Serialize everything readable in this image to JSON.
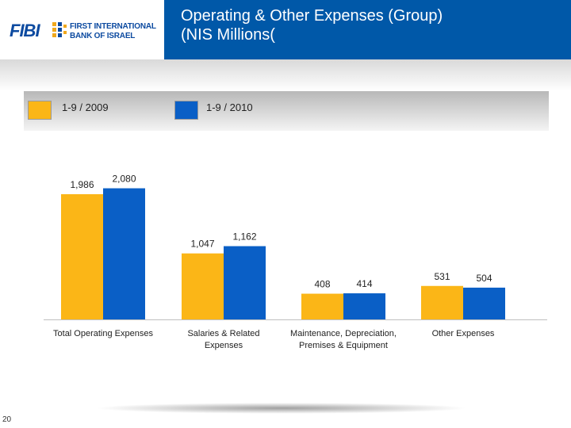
{
  "header": {
    "logo_text": "FIBI",
    "logo_line1": "FIRST INTERNATIONAL",
    "logo_line2": "BANK OF ISRAEL",
    "title_line1": "Operating & Other Expenses (Group)",
    "title_line2": "(NIS Millions("
  },
  "legend": {
    "items": [
      {
        "label": "1-9 / 2009",
        "color": "#fbb617"
      },
      {
        "label": "1-9 / 2010",
        "color": "#0a5fc6"
      }
    ]
  },
  "chart_data": {
    "type": "bar",
    "title": "Operating & Other Expenses (Group) (NIS Millions(",
    "categories": [
      [
        "Total Operating Expenses"
      ],
      [
        "Salaries & Related",
        "Expenses"
      ],
      [
        "Maintenance, Depreciation,",
        "Premises & Equipment"
      ],
      [
        "Other Expenses"
      ]
    ],
    "series": [
      {
        "name": "1-9 / 2009",
        "color": "#fbb617",
        "values": [
          1986,
          1047,
          408,
          531
        ],
        "labels": [
          "1,986",
          "1,047",
          "408",
          "531"
        ]
      },
      {
        "name": "1-9 / 2010",
        "color": "#0a5fc6",
        "values": [
          2080,
          1162,
          414,
          504
        ],
        "labels": [
          "2,080",
          "1,162",
          "414",
          "504"
        ]
      }
    ],
    "ylim": [
      0,
      2200
    ],
    "grid": false,
    "xlabel": "",
    "ylabel": ""
  },
  "page_number": "20"
}
